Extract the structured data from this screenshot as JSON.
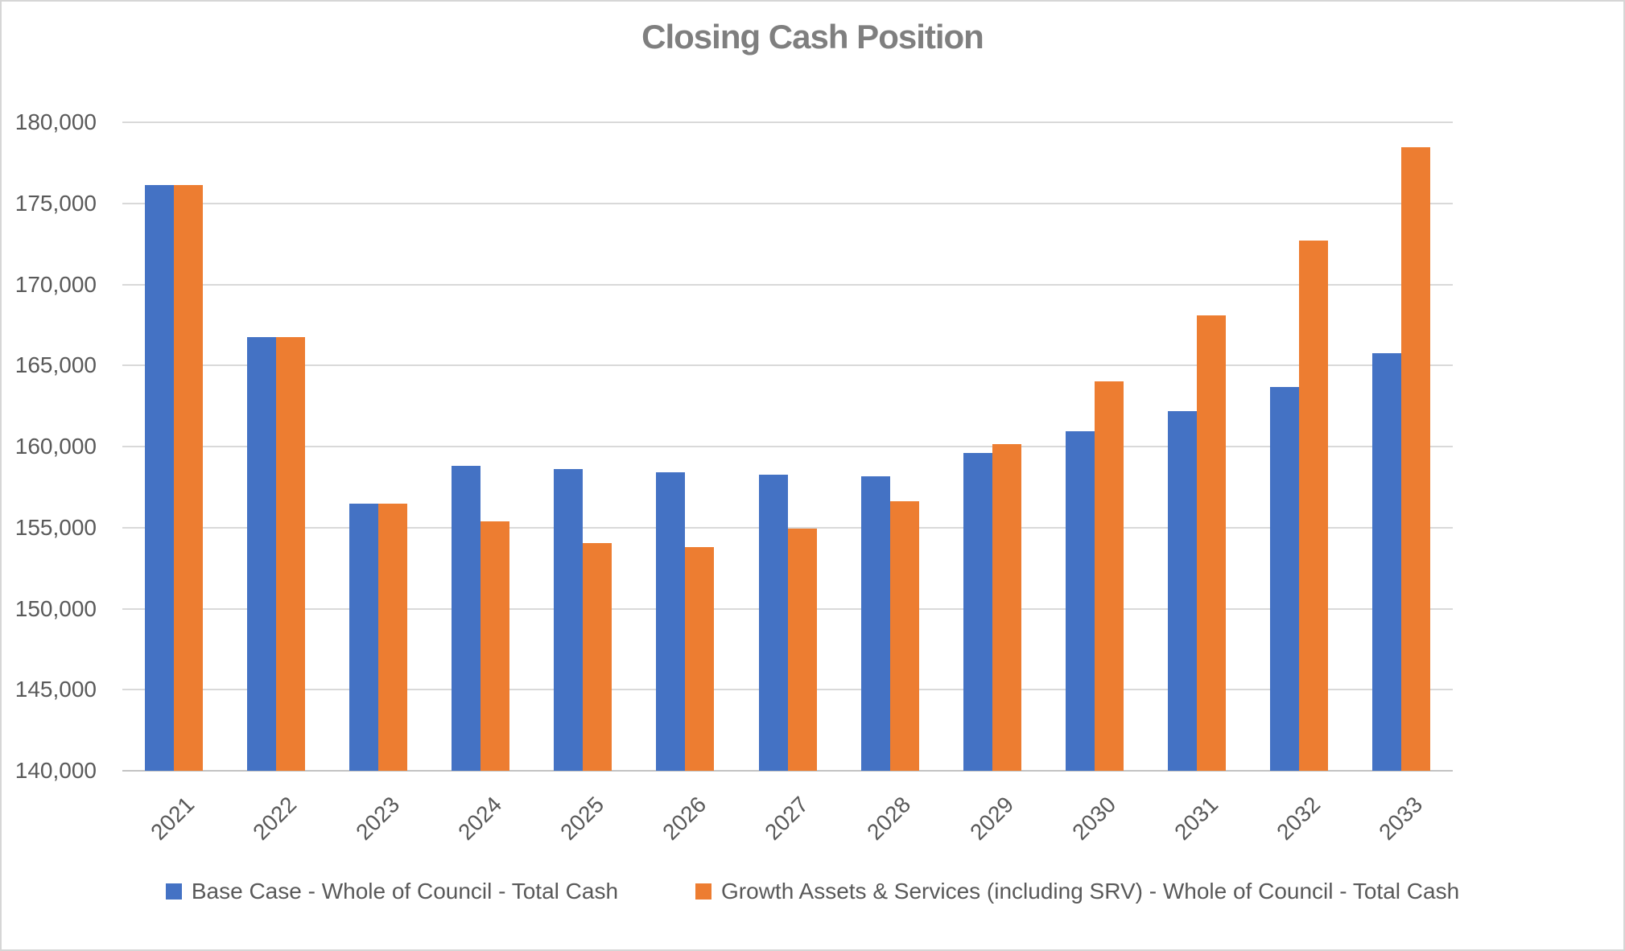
{
  "title": "Closing Cash Position",
  "chart_data": {
    "type": "bar",
    "title": "Closing Cash Position",
    "categories": [
      "2021",
      "2022",
      "2023",
      "2024",
      "2025",
      "2026",
      "2027",
      "2028",
      "2029",
      "2030",
      "2031",
      "2032",
      "2033"
    ],
    "series": [
      {
        "name": "Base Case - Whole of Council - Total Cash",
        "color": "#4472C4",
        "values": [
          176150,
          166750,
          156500,
          158800,
          158600,
          158400,
          158250,
          158150,
          159600,
          160950,
          162200,
          163650,
          165750
        ]
      },
      {
        "name": "Growth Assets & Services (including SRV) - Whole of Council - Total Cash",
        "color": "#ED7D31",
        "values": [
          176150,
          166750,
          156500,
          155400,
          154050,
          153800,
          154950,
          156650,
          160150,
          164000,
          168100,
          172700,
          178450
        ]
      }
    ],
    "xlabel": "",
    "ylabel": "",
    "ylim": [
      140000,
      180000
    ],
    "ytick_step": 5000,
    "ytick_labels": [
      "140,000",
      "145,000",
      "150,000",
      "155,000",
      "160,000",
      "165,000",
      "170,000",
      "175,000",
      "180,000"
    ],
    "grid": true,
    "gridline_color": "#D9D9D9",
    "axis_line_color": "#C3C3C3",
    "label_color": "#595959",
    "title_color": "#7F7F7F",
    "legend_position": "bottom"
  }
}
